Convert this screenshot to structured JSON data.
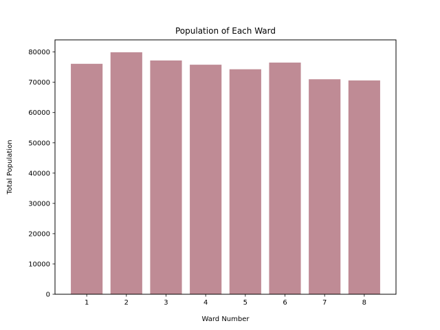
{
  "chart_data": {
    "type": "bar",
    "title": "Population of Each Ward",
    "xlabel": "Ward Number",
    "ylabel": "Total Population",
    "categories": [
      "1",
      "2",
      "3",
      "4",
      "5",
      "6",
      "7",
      "8"
    ],
    "values": [
      76100,
      79900,
      77200,
      75800,
      74300,
      76500,
      71000,
      70600
    ],
    "ylim": [
      0,
      84000
    ],
    "yticks": [
      "0",
      "10000",
      "20000",
      "30000",
      "40000",
      "50000",
      "60000",
      "70000",
      "80000"
    ],
    "bar_color": "#bf8b95",
    "grid": false,
    "legend": "none"
  }
}
